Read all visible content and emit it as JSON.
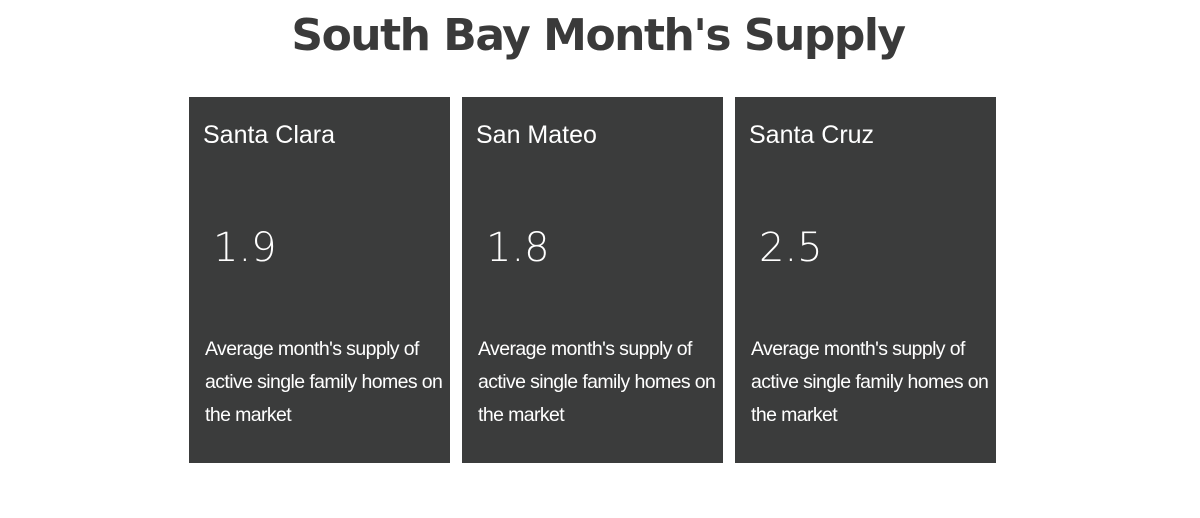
{
  "page": {
    "title": "South Bay Month's Supply"
  },
  "cards": [
    {
      "name": "Santa Clara",
      "value": "1.9",
      "description": "Average month's supply of active single family homes on the market"
    },
    {
      "name": "San Mateo",
      "value": "1.8",
      "description": "Average month's supply of active single family homes on the market"
    },
    {
      "name": "Santa Cruz",
      "value": "2.5",
      "description": "Average month's supply of active single family homes on the market"
    }
  ],
  "colors": {
    "card_background": "#3b3c3c",
    "title_text": "#3a3a3a",
    "card_text": "#ffffff"
  }
}
